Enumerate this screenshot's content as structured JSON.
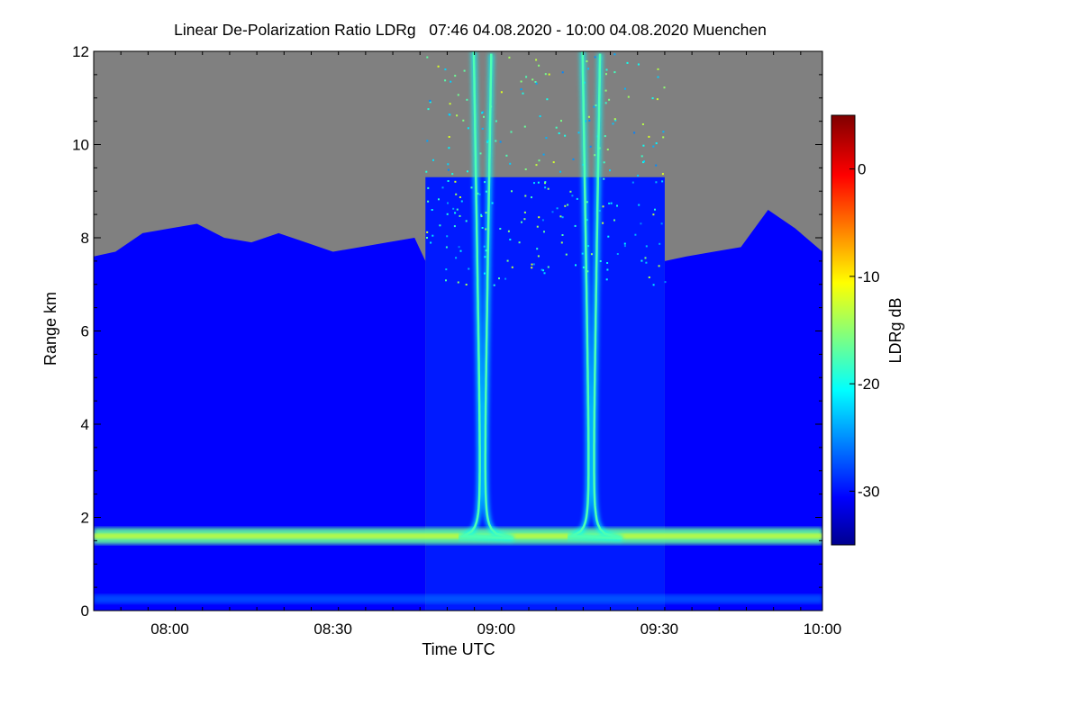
{
  "chart_data": {
    "type": "heatmap",
    "title": "Linear De-Polarization Ratio LDRg   07:46 04.08.2020 - 10:00 04.08.2020 Muenchen",
    "xlabel": "Time UTC",
    "ylabel": "Range km",
    "x_range_minutes_utc": [
      466,
      600
    ],
    "xlim_labels": [
      "07:46",
      "10:00"
    ],
    "ylim": [
      0,
      12
    ],
    "x_ticks": [
      {
        "value": 480,
        "label": "08:00"
      },
      {
        "value": 510,
        "label": "08:30"
      },
      {
        "value": 540,
        "label": "09:00"
      },
      {
        "value": 570,
        "label": "09:30"
      },
      {
        "value": 600,
        "label": "10:00"
      }
    ],
    "y_ticks": [
      0,
      2,
      4,
      6,
      8,
      10,
      12
    ],
    "colorbar": {
      "label": "LDRg dB",
      "range": [
        -35,
        5
      ],
      "ticks": [
        0,
        -10,
        -20,
        -30
      ],
      "colormap": "jet"
    },
    "no_signal_color": "#808080",
    "features": {
      "background_ldr_db": -30,
      "boundary_layer": {
        "height_km": 1.6,
        "ldr_db": -16
      },
      "surface_layer": {
        "height_km": 0.25,
        "ldr_db": -25
      },
      "signal_top_km": [
        [
          466,
          7.6
        ],
        [
          470,
          7.7
        ],
        [
          475,
          8.1
        ],
        [
          480,
          8.2
        ],
        [
          485,
          8.3
        ],
        [
          490,
          8.0
        ],
        [
          495,
          7.9
        ],
        [
          500,
          8.1
        ],
        [
          505,
          7.9
        ],
        [
          510,
          7.7
        ],
        [
          515,
          7.8
        ],
        [
          520,
          7.9
        ],
        [
          525,
          8.0
        ],
        [
          527,
          7.5
        ]
      ],
      "signal_top_after_km": [
        [
          571,
          7.5
        ],
        [
          575,
          7.6
        ],
        [
          580,
          7.7
        ],
        [
          585,
          7.8
        ],
        [
          590,
          8.6
        ],
        [
          595,
          8.2
        ],
        [
          600,
          7.7
        ]
      ],
      "noisy_region_minutes": [
        527,
        571
      ],
      "sun_streaks": [
        {
          "center_minute": 537.5,
          "bottom_km": 1.55,
          "ldr_db": -20
        },
        {
          "center_minute": 557.5,
          "bottom_km": 1.55,
          "ldr_db": -20
        }
      ]
    }
  }
}
